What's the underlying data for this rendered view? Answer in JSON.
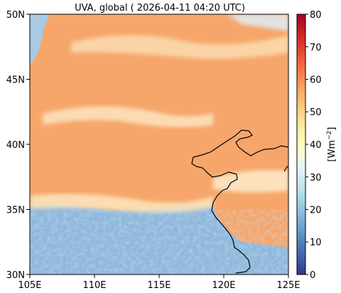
{
  "title": "UVA, global ( 2026-04-11 04:20 UTC)",
  "axes": {
    "x_ticks": [
      "105E",
      "110E",
      "115E",
      "120E",
      "125E"
    ],
    "y_ticks": [
      "30N",
      "35N",
      "40N",
      "45N",
      "50N"
    ],
    "x_range_deg": [
      105,
      125
    ],
    "y_range_deg": [
      30,
      50
    ]
  },
  "colorbar": {
    "label": "[Wm$^{-2}$]",
    "label_main": "[Wm",
    "label_sup": "−2",
    "label_end": "]",
    "ticks": [
      "0",
      "10",
      "20",
      "30",
      "40",
      "50",
      "60",
      "70",
      "80"
    ],
    "range": [
      0,
      80
    ],
    "colormap": "RdYlBu_r",
    "stops": [
      "#313695",
      "#4575b4",
      "#74add1",
      "#abd9e9",
      "#e0f3f8",
      "#ffffbf",
      "#fee090",
      "#fdae61",
      "#f46d43",
      "#d73027",
      "#a50026"
    ]
  },
  "map": {
    "dominant_value_wm2": 57,
    "dominant_color": "#f7a76c",
    "low_region_color": "#8fb8dc",
    "features": [
      "coastline"
    ]
  }
}
